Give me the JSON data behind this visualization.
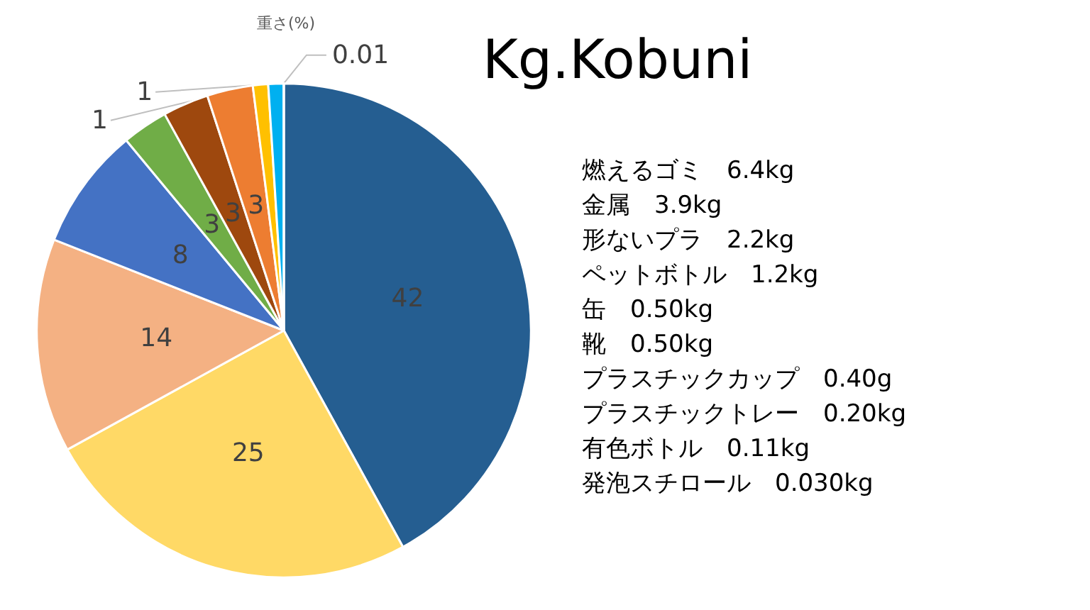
{
  "chart_data": {
    "type": "pie",
    "title": "Kg.Kobuni",
    "subtitle": "重さ(%)",
    "categories": [
      null,
      null,
      null,
      null,
      null,
      null,
      null,
      null,
      null,
      null
    ],
    "values": [
      42,
      25,
      14,
      8,
      3,
      3,
      3,
      1,
      1,
      0.01
    ],
    "colors": [
      "#255e91",
      "#ffd966",
      "#f4b183",
      "#4472c4",
      "#70ad47",
      "#9e480e",
      "#ed7d31",
      "#ffc000",
      "#00b0f0",
      "#7f7f7f"
    ],
    "data_labels": true,
    "annotations": [
      "燃えるゴミ　6.4kg",
      "金属　3.9kg",
      "形ないプラ　2.2kg",
      "ペットボトル　1.2kg",
      "缶　0.50kg",
      "靴　0.50kg",
      "プラスチックカップ　0.40g",
      "プラスチックトレー　0.20kg",
      "有色ボトル　0.11kg",
      "発泡スチロール　0.030kg"
    ]
  }
}
